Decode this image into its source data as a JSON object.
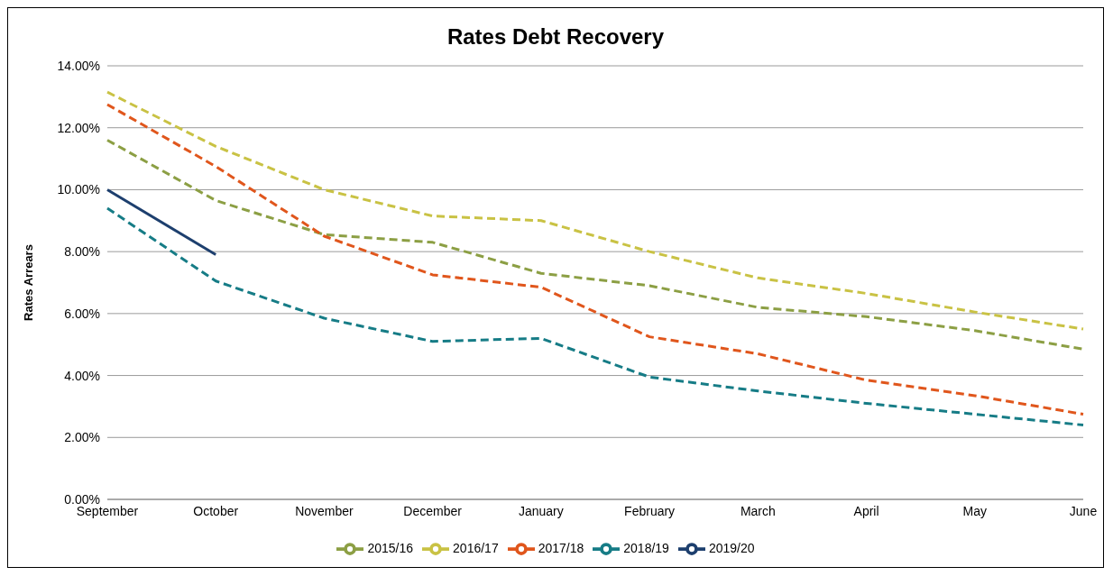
{
  "chart_data": {
    "type": "line",
    "title": "Rates Debt Recovery",
    "ylabel": "Rates Arrears",
    "categories": [
      "September",
      "October",
      "November",
      "December",
      "January",
      "February",
      "March",
      "April",
      "May",
      "June"
    ],
    "series": [
      {
        "name": "2015/16",
        "color": "#8c9f44",
        "line_style": "dashed",
        "values": [
          11.6,
          9.65,
          8.55,
          8.3,
          7.3,
          6.9,
          6.2,
          5.9,
          5.45,
          4.85
        ]
      },
      {
        "name": "2016/17",
        "color": "#c9c244",
        "line_style": "dashed",
        "values": [
          13.15,
          11.4,
          10.0,
          9.15,
          9.0,
          8.0,
          7.15,
          6.65,
          6.05,
          5.5
        ]
      },
      {
        "name": "2017/18",
        "color": "#e0561c",
        "line_style": "dashed",
        "values": [
          12.75,
          10.75,
          8.5,
          7.25,
          6.85,
          5.25,
          4.7,
          3.85,
          3.35,
          2.75
        ]
      },
      {
        "name": "2018/19",
        "color": "#167c86",
        "line_style": "dashed",
        "values": [
          9.4,
          7.05,
          5.85,
          5.1,
          5.2,
          3.95,
          3.5,
          3.1,
          2.75,
          2.4
        ]
      },
      {
        "name": "2019/20",
        "color": "#1d3f6e",
        "line_style": "solid",
        "values": [
          10.0,
          7.9,
          null,
          null,
          null,
          null,
          null,
          null,
          null,
          null
        ]
      }
    ],
    "ylim": [
      0,
      14
    ],
    "yticks": [
      {
        "value": 0,
        "label": "0.00%"
      },
      {
        "value": 2,
        "label": "2.00%"
      },
      {
        "value": 4,
        "label": "4.00%"
      },
      {
        "value": 6,
        "label": "6.00%"
      },
      {
        "value": 8,
        "label": "8.00%"
      },
      {
        "value": 10,
        "label": "10.00%"
      },
      {
        "value": 12,
        "label": "12.00%"
      },
      {
        "value": 14,
        "label": "14.00%"
      }
    ],
    "grid": "y",
    "legend": "bottom",
    "marker": "none"
  }
}
